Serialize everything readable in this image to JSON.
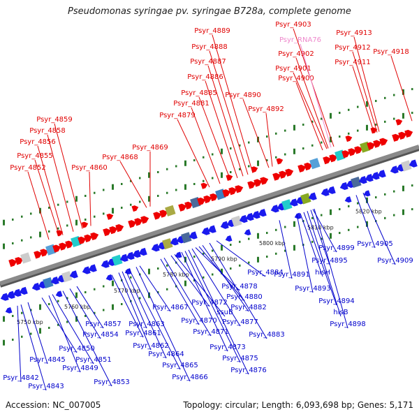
{
  "title": "Pseudomonas syringae pv. syringae B728a, complete genome",
  "footer": {
    "accession": "Accession: NC_007005",
    "summary": "Topology: circular; Length: 6,093,698 bp; Genes: 5,171"
  },
  "colors": {
    "forward_label": "#e00000",
    "reverse_label": "#0000cc",
    "rna_label": "#ee88cc",
    "forward_arrow": "#ee0000",
    "reverse_arrow": "#1a1aee",
    "backbone": "#8a8a8a",
    "tick": "#2a7a2a"
  },
  "scale_labels": [
    "5750 kbp",
    "5760 kbp",
    "5770 kbp",
    "5780 kbp",
    "5790 kbp",
    "5800 kbp",
    "5810 kbp",
    "5820 kbp"
  ],
  "forward_genes": [
    "Psyr_4852",
    "Psyr_4855",
    "Psyr_4856",
    "Psyr_4858",
    "Psyr_4859",
    "Psyr_4860",
    "Psyr_4868",
    "Psyr_4869",
    "Psyr_4879",
    "Psyr_4881",
    "Psyr_4885",
    "Psyr_4886",
    "Psyr_4887",
    "Psyr_4888",
    "Psyr_4889",
    "Psyr_4890",
    "Psyr_4892",
    "Psyr_4900",
    "Psyr_4901",
    "Psyr_4902",
    "Psyr_4903",
    "Psyr_4911",
    "Psyr_4912",
    "Psyr_4913",
    "Psyr_4918"
  ],
  "rna_genes": [
    "Psyr_RNA76"
  ],
  "reverse_genes": [
    "Psyr_4842",
    "Psyr_4843",
    "Psyr_4845",
    "Psyr_4849",
    "Psyr_4850",
    "Psyr_4851",
    "Psyr_4853",
    "Psyr_4854",
    "Psyr_4857",
    "Psyr_4861",
    "Psyr_4862",
    "Psyr_4863",
    "Psyr_4864",
    "Psyr_4865",
    "Psyr_4866",
    "Psyr_4867",
    "Psyr_4870",
    "Psyr_4871",
    "ssuB",
    "Psyr_4872",
    "Psyr_4873",
    "Psyr_4875",
    "Psyr_4876",
    "Psyr_4877",
    "Psyr_4878",
    "Psyr_4880",
    "Psyr_4882",
    "Psyr_4883",
    "Psyr_4884",
    "Psyr_4891",
    "Psyr_4893",
    "hisH",
    "Psyr_4894",
    "hisB",
    "Psyr_4895",
    "Psyr_4899",
    "Psyr_4898",
    "Psyr_4905",
    "Psyr_4909"
  ]
}
